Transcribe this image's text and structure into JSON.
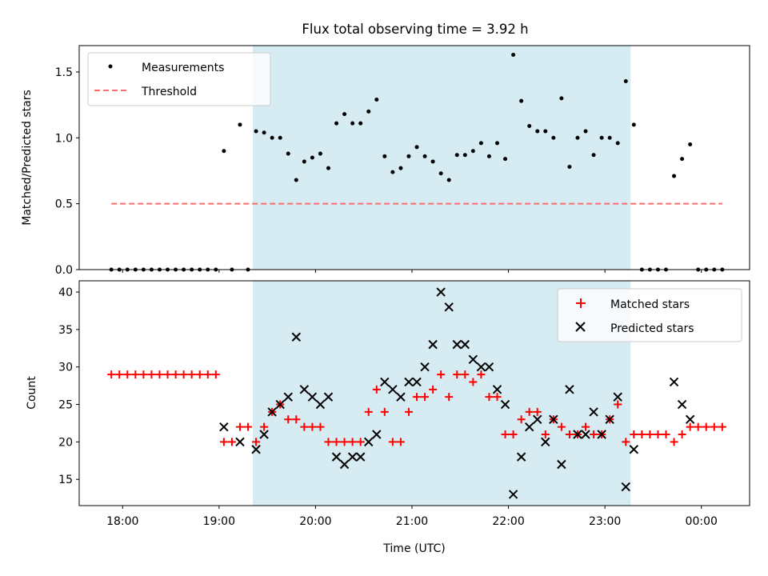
{
  "title": "Flux total observing time = 3.92 h",
  "xlabel": "Time (UTC)",
  "colors": {
    "shade": "#add8e6",
    "threshold": "#ff6b6b",
    "matched": "#ff0000",
    "predicted": "#000000",
    "measurement": "#000000"
  },
  "chart_data": [
    {
      "type": "scatter",
      "ylabel": "Matched/Predicted stars",
      "ylim": [
        0,
        1.7
      ],
      "yticks": [
        0.0,
        0.5,
        1.0,
        1.5
      ],
      "ytick_labels": [
        "0.0",
        "0.5",
        "1.0",
        "1.5"
      ],
      "xlim_hours": [
        17.55,
        24.5
      ],
      "xticks_hours": [
        18,
        19,
        20,
        21,
        22,
        23,
        24
      ],
      "xtick_labels": [
        "18:00",
        "19:00",
        "20:00",
        "21:00",
        "22:00",
        "23:00",
        "00:00"
      ],
      "legend": {
        "position": "top-left",
        "entries": [
          "Measurements",
          "Threshold"
        ]
      },
      "shaded_span": [
        "19:21",
        "23:16"
      ],
      "series": [
        {
          "name": "Measurements",
          "marker": "dot",
          "x": [
            "17:53",
            "17:58",
            "18:03",
            "18:08",
            "18:13",
            "18:18",
            "18:23",
            "18:28",
            "18:33",
            "18:38",
            "18:43",
            "18:48",
            "18:53",
            "18:58",
            "19:03",
            "19:08",
            "19:13",
            "19:18",
            "19:23",
            "19:28",
            "19:33",
            "19:38",
            "19:43",
            "19:48",
            "19:53",
            "19:58",
            "20:03",
            "20:08",
            "20:13",
            "20:18",
            "20:23",
            "20:28",
            "20:33",
            "20:38",
            "20:43",
            "20:48",
            "20:53",
            "20:58",
            "21:03",
            "21:08",
            "21:13",
            "21:18",
            "21:23",
            "21:28",
            "21:33",
            "21:38",
            "21:43",
            "21:48",
            "21:53",
            "21:58",
            "22:03",
            "22:08",
            "22:13",
            "22:18",
            "22:23",
            "22:28",
            "22:33",
            "22:38",
            "22:43",
            "22:48",
            "22:53",
            "22:58",
            "23:03",
            "23:08",
            "23:13",
            "23:18",
            "23:23",
            "23:28",
            "23:33",
            "23:38",
            "23:43",
            "23:48",
            "23:53",
            "23:58",
            "00:03",
            "00:08",
            "00:13"
          ],
          "values": [
            0,
            0,
            0,
            0,
            0,
            0,
            0,
            0,
            0,
            0,
            0,
            0,
            0,
            0,
            0.9,
            0,
            1.1,
            0,
            1.05,
            1.04,
            1.0,
            1.0,
            0.88,
            0.68,
            0.82,
            0.85,
            0.88,
            0.77,
            1.11,
            1.18,
            1.11,
            1.11,
            1.2,
            1.29,
            0.86,
            0.74,
            0.77,
            0.86,
            0.93,
            0.86,
            0.82,
            0.73,
            0.68,
            0.87,
            0.87,
            0.9,
            0.96,
            0.86,
            0.96,
            0.84,
            1.63,
            1.28,
            1.09,
            1.05,
            1.05,
            1.0,
            1.3,
            0.78,
            1.0,
            1.05,
            0.87,
            1.0,
            1.0,
            0.96,
            1.43,
            1.1,
            0,
            0,
            0,
            0,
            0.71,
            0.84,
            0.95,
            0,
            0,
            0,
            0
          ]
        },
        {
          "name": "Threshold",
          "marker": "dashed-line",
          "x": [
            "17:53",
            "00:13"
          ],
          "values": [
            0.5,
            0.5
          ]
        }
      ]
    },
    {
      "type": "scatter",
      "ylabel": "Count",
      "ylim": [
        11.5,
        41.5
      ],
      "yticks": [
        15,
        20,
        25,
        30,
        35,
        40
      ],
      "ytick_labels": [
        "15",
        "20",
        "25",
        "30",
        "35",
        "40"
      ],
      "xlim_hours": [
        17.55,
        24.5
      ],
      "xticks_hours": [
        18,
        19,
        20,
        21,
        22,
        23,
        24
      ],
      "xtick_labels": [
        "18:00",
        "19:00",
        "20:00",
        "21:00",
        "22:00",
        "23:00",
        "00:00"
      ],
      "legend": {
        "position": "top-right",
        "entries": [
          "Matched stars",
          "Predicted stars"
        ]
      },
      "shaded_span": [
        "19:21",
        "23:16"
      ],
      "series": [
        {
          "name": "Matched stars",
          "marker": "plus",
          "x": [
            "17:53",
            "17:58",
            "18:03",
            "18:08",
            "18:13",
            "18:18",
            "18:23",
            "18:28",
            "18:33",
            "18:38",
            "18:43",
            "18:48",
            "18:53",
            "18:58",
            "19:03",
            "19:08",
            "19:13",
            "19:18",
            "19:23",
            "19:28",
            "19:33",
            "19:38",
            "19:43",
            "19:48",
            "19:53",
            "19:58",
            "20:03",
            "20:08",
            "20:13",
            "20:18",
            "20:23",
            "20:28",
            "20:33",
            "20:38",
            "20:43",
            "20:48",
            "20:53",
            "20:58",
            "21:03",
            "21:08",
            "21:13",
            "21:18",
            "21:23",
            "21:28",
            "21:33",
            "21:38",
            "21:43",
            "21:48",
            "21:53",
            "21:58",
            "22:03",
            "22:08",
            "22:13",
            "22:18",
            "22:23",
            "22:28",
            "22:33",
            "22:38",
            "22:43",
            "22:48",
            "22:53",
            "22:58",
            "23:03",
            "23:08",
            "23:13",
            "23:18",
            "23:23",
            "23:28",
            "23:33",
            "23:38",
            "23:43",
            "23:48",
            "23:53",
            "23:58",
            "00:03",
            "00:08",
            "00:13"
          ],
          "values": [
            29,
            29,
            29,
            29,
            29,
            29,
            29,
            29,
            29,
            29,
            29,
            29,
            29,
            29,
            20,
            20,
            22,
            22,
            20,
            22,
            24,
            25,
            23,
            23,
            22,
            22,
            22,
            20,
            20,
            20,
            20,
            20,
            24,
            27,
            24,
            20,
            20,
            24,
            26,
            26,
            27,
            29,
            26,
            29,
            29,
            28,
            29,
            26,
            26,
            21,
            21,
            23,
            24,
            24,
            21,
            23,
            22,
            21,
            21,
            22,
            21,
            21,
            23,
            25,
            20,
            21,
            21,
            21,
            21,
            21,
            20,
            21,
            22,
            22,
            22,
            22,
            22
          ]
        },
        {
          "name": "Predicted stars",
          "marker": "x",
          "x": [
            "19:03",
            "19:13",
            "19:23",
            "19:28",
            "19:33",
            "19:38",
            "19:43",
            "19:48",
            "19:53",
            "19:58",
            "20:03",
            "20:08",
            "20:13",
            "20:18",
            "20:23",
            "20:28",
            "20:33",
            "20:38",
            "20:43",
            "20:48",
            "20:53",
            "20:58",
            "21:03",
            "21:08",
            "21:13",
            "21:18",
            "21:23",
            "21:28",
            "21:33",
            "21:38",
            "21:43",
            "21:48",
            "21:53",
            "21:58",
            "22:03",
            "22:08",
            "22:13",
            "22:18",
            "22:23",
            "22:28",
            "22:33",
            "22:38",
            "22:43",
            "22:48",
            "22:53",
            "22:58",
            "23:03",
            "23:08",
            "23:13",
            "23:18",
            "23:43",
            "23:48",
            "23:53"
          ],
          "values": [
            22,
            20,
            19,
            21,
            24,
            25,
            26,
            34,
            27,
            26,
            25,
            26,
            18,
            17,
            18,
            18,
            20,
            21,
            28,
            27,
            26,
            28,
            28,
            30,
            33,
            40,
            38,
            33,
            33,
            31,
            30,
            30,
            27,
            25,
            13,
            18,
            22,
            23,
            20,
            23,
            17,
            27,
            21,
            21,
            24,
            21,
            23,
            26,
            14,
            19,
            28,
            25,
            23
          ]
        }
      ]
    }
  ]
}
